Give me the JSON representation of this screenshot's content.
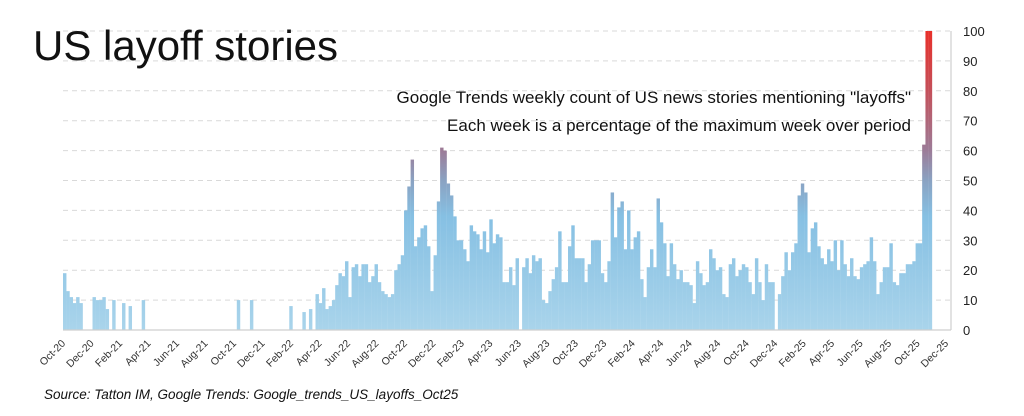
{
  "chart_data": {
    "type": "bar",
    "title": "US layoff stories",
    "subtitle": [
      "Google Trends weekly count of US news stories mentioning \"layoffs\"",
      "Each week is a percentage of the maximum week over period"
    ],
    "source": "Source: Tatton IM, Google Trends: Google_trends_US_layoffs_Oct25",
    "xlabel": "",
    "ylabel": "",
    "ylim": [
      0,
      100
    ],
    "y_ticks": [
      "0",
      "10",
      "20",
      "30",
      "40",
      "50",
      "60",
      "70",
      "80",
      "90",
      "100"
    ],
    "y_axis_side": "right",
    "grid": true,
    "x_ticks": [
      "Oct-20",
      "Dec-20",
      "Feb-21",
      "Apr-21",
      "Jun-21",
      "Aug-21",
      "Oct-21",
      "Dec-21",
      "Feb-22",
      "Apr-22",
      "Jun-22",
      "Aug-22",
      "Oct-22",
      "Dec-22",
      "Feb-23",
      "Apr-23",
      "Jun-23",
      "Aug-23",
      "Oct-23",
      "Dec-23",
      "Feb-24",
      "Apr-24",
      "Jun-24",
      "Aug-24",
      "Oct-24",
      "Dec-24",
      "Feb-25",
      "Apr-25",
      "Jun-25",
      "Aug-25",
      "Oct-25",
      "Dec-25"
    ],
    "x_frequency": "weekly, Oct 2020 - Oct 2025",
    "colors": {
      "low": "#a9d4eb",
      "mid": "#86c0e3",
      "high_mid": "#9c7c98",
      "high": "#e8302a",
      "grid": "#d9d9d9"
    },
    "values": [
      19,
      13,
      11,
      9,
      11,
      9,
      0,
      0,
      0,
      11,
      10,
      10,
      11,
      7,
      0,
      10,
      0,
      0,
      9,
      0,
      8,
      0,
      0,
      0,
      10,
      0,
      0,
      0,
      0,
      0,
      0,
      0,
      0,
      0,
      0,
      0,
      0,
      0,
      0,
      0,
      0,
      0,
      0,
      0,
      0,
      0,
      0,
      0,
      0,
      0,
      0,
      0,
      0,
      10,
      0,
      0,
      0,
      10,
      0,
      0,
      0,
      0,
      0,
      0,
      0,
      0,
      0,
      0,
      0,
      8,
      0,
      0,
      0,
      6,
      0,
      7,
      0,
      12,
      9,
      14,
      7,
      8,
      10,
      15,
      19,
      18,
      23,
      11,
      21,
      22,
      18,
      22,
      22,
      16,
      18,
      22,
      16,
      13,
      12,
      11,
      12,
      20,
      22,
      25,
      40,
      48,
      57,
      28,
      31,
      34,
      35,
      28,
      13,
      25,
      43,
      61,
      60,
      49,
      45,
      38,
      30,
      30,
      27,
      23,
      35,
      33,
      32,
      27,
      33,
      26,
      37,
      29,
      32,
      31,
      16,
      16,
      21,
      15,
      24,
      0,
      21,
      24,
      19,
      25,
      23,
      24,
      10,
      9,
      13,
      17,
      21,
      33,
      16,
      16,
      28,
      35,
      24,
      24,
      24,
      16,
      22,
      30,
      30,
      30,
      19,
      16,
      23,
      46,
      31,
      41,
      43,
      27,
      40,
      27,
      31,
      33,
      17,
      11,
      21,
      27,
      21,
      44,
      36,
      29,
      18,
      29,
      22,
      17,
      20,
      16,
      16,
      15,
      9,
      23,
      19,
      15,
      16,
      27,
      24,
      20,
      21,
      12,
      11,
      22,
      24,
      18,
      20,
      22,
      21,
      16,
      12,
      24,
      16,
      10,
      22,
      16,
      16,
      0,
      12,
      18,
      26,
      20,
      26,
      29,
      45,
      49,
      46,
      26,
      34,
      36,
      28,
      24,
      22,
      27,
      23,
      30,
      20,
      30,
      22,
      18,
      24,
      18,
      17,
      21,
      22,
      23,
      31,
      23,
      12,
      16,
      21,
      21,
      29,
      16,
      15,
      19,
      19,
      22,
      22,
      23,
      29,
      29,
      62,
      100,
      100
    ]
  }
}
